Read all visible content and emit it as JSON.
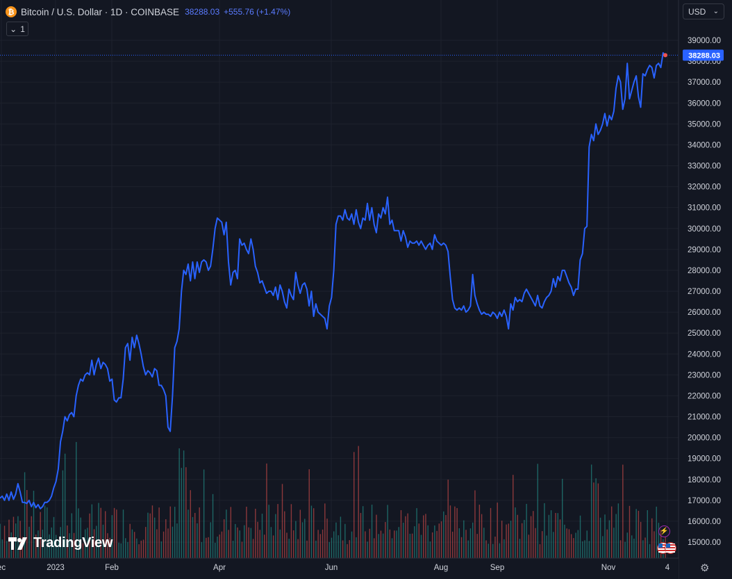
{
  "header": {
    "symbol_title": "Bitcoin / U.S. Dollar · 1D · COINBASE",
    "last_price": "38288.03",
    "change": "+555.76 (+1.47%)",
    "collapse_label": "1"
  },
  "currency_selector": {
    "value": "USD"
  },
  "branding": {
    "logo_text": "TradingView"
  },
  "colors": {
    "background": "#131722",
    "line": "#2962ff",
    "grid": "#1e222d",
    "volume_up": "#26a69a",
    "volume_down": "#ef5350",
    "text": "#d1d4dc",
    "price_label": "#2962ff"
  },
  "icons": {
    "symbol": "bitcoin-icon",
    "collapse": "chevron-down-icon",
    "currency": "chevron-down-icon",
    "settings": "gear-icon",
    "event": "lightning-icon",
    "flag": "us-flag-icon"
  },
  "chart_data": {
    "type": "line",
    "x_labels": [
      "ec",
      "2023",
      "Feb",
      "Apr",
      "Jun",
      "Aug",
      "Sep",
      "Nov",
      "4"
    ],
    "y_ticks": [
      15000,
      16000,
      17000,
      18000,
      19000,
      20000,
      21000,
      22000,
      23000,
      24000,
      25000,
      26000,
      27000,
      28000,
      29000,
      30000,
      31000,
      32000,
      33000,
      34000,
      35000,
      36000,
      37000,
      38000,
      39000
    ],
    "y_range": [
      14300,
      39900
    ],
    "last_value": 38288.03,
    "series": [
      {
        "values": [
          17100,
          17200,
          17000,
          17300,
          17000,
          17400,
          17050,
          17300,
          17800,
          17400,
          16900,
          16900,
          16850,
          17000,
          16700,
          16900,
          16650,
          16800,
          16600,
          16700,
          16900,
          16900,
          17000,
          17200,
          17600,
          17900,
          18500,
          19800,
          20300,
          21000,
          20800,
          21100,
          21200,
          21000,
          22000,
          22500,
          22800,
          22700,
          23000,
          23100,
          23000,
          23700,
          23000,
          23500,
          23800,
          23300,
          23600,
          23500,
          23300,
          22700,
          22800,
          21800,
          21700,
          21900,
          21900,
          22800,
          24300,
          24500,
          23700,
          24800,
          24300,
          24900,
          24500,
          24000,
          23400,
          23000,
          23200,
          23100,
          22900,
          23300,
          23200,
          22500,
          22500,
          22300,
          22000,
          20500,
          20300,
          22000,
          24300,
          24600,
          25200,
          27000,
          28000,
          27800,
          28300,
          27500,
          28400,
          27600,
          28400,
          27900,
          28400,
          28500,
          28400,
          28000,
          28200,
          29000,
          30000,
          30500,
          30400,
          30300,
          29700,
          30300,
          28400,
          27300,
          27900,
          28000,
          27600,
          29500,
          29200,
          29300,
          29000,
          28800,
          29500,
          29000,
          28200,
          27900,
          27400,
          27500,
          27200,
          26900,
          27000,
          27000,
          26800,
          27200,
          26600,
          27300,
          27000,
          26500,
          26200,
          27100,
          26800,
          26600,
          27900,
          27300,
          26900,
          27300,
          27400,
          27100,
          26300,
          27000,
          25800,
          26400,
          26000,
          25900,
          25800,
          25700,
          25200,
          26300,
          26700,
          28000,
          30200,
          30600,
          30600,
          30400,
          30900,
          30500,
          30400,
          30700,
          30200,
          30900,
          30300,
          30000,
          30500,
          30400,
          31200,
          30400,
          31000,
          30200,
          29800,
          30700,
          30500,
          31000,
          30700,
          31500,
          30200,
          30400,
          29900,
          29900,
          29900,
          29400,
          29900,
          29600,
          29100,
          29400,
          29300,
          29300,
          29400,
          29200,
          29400,
          29200,
          29000,
          29200,
          29300,
          29000,
          29700,
          29400,
          29300,
          29200,
          29300,
          29200,
          28900,
          27700,
          26600,
          26200,
          26100,
          26200,
          26100,
          26300,
          26000,
          26100,
          26300,
          27800,
          26800,
          26400,
          26100,
          25900,
          26000,
          25900,
          25900,
          25800,
          26000,
          25900,
          25700,
          26000,
          25800,
          26100,
          25800,
          25200,
          26400,
          26100,
          26700,
          26500,
          26600,
          26500,
          26900,
          27100,
          26900,
          26700,
          26500,
          26300,
          26800,
          26300,
          26200,
          26500,
          26700,
          26800,
          27000,
          27600,
          27200,
          27700,
          27500,
          28000,
          28000,
          27700,
          27400,
          27200,
          26800,
          27100,
          27100,
          28500,
          28800,
          30000,
          30100,
          33900,
          34500,
          34200,
          35000,
          34500,
          34700,
          35000,
          35500,
          34900,
          35400,
          35200,
          35600,
          36700,
          37300,
          37000,
          35700,
          36200,
          37900,
          36200,
          36600,
          37000,
          37300,
          36300,
          35800,
          37400,
          37300,
          37600,
          37800,
          37700,
          37200,
          37800,
          37900,
          37700,
          38400,
          38288
        ]
      }
    ]
  }
}
